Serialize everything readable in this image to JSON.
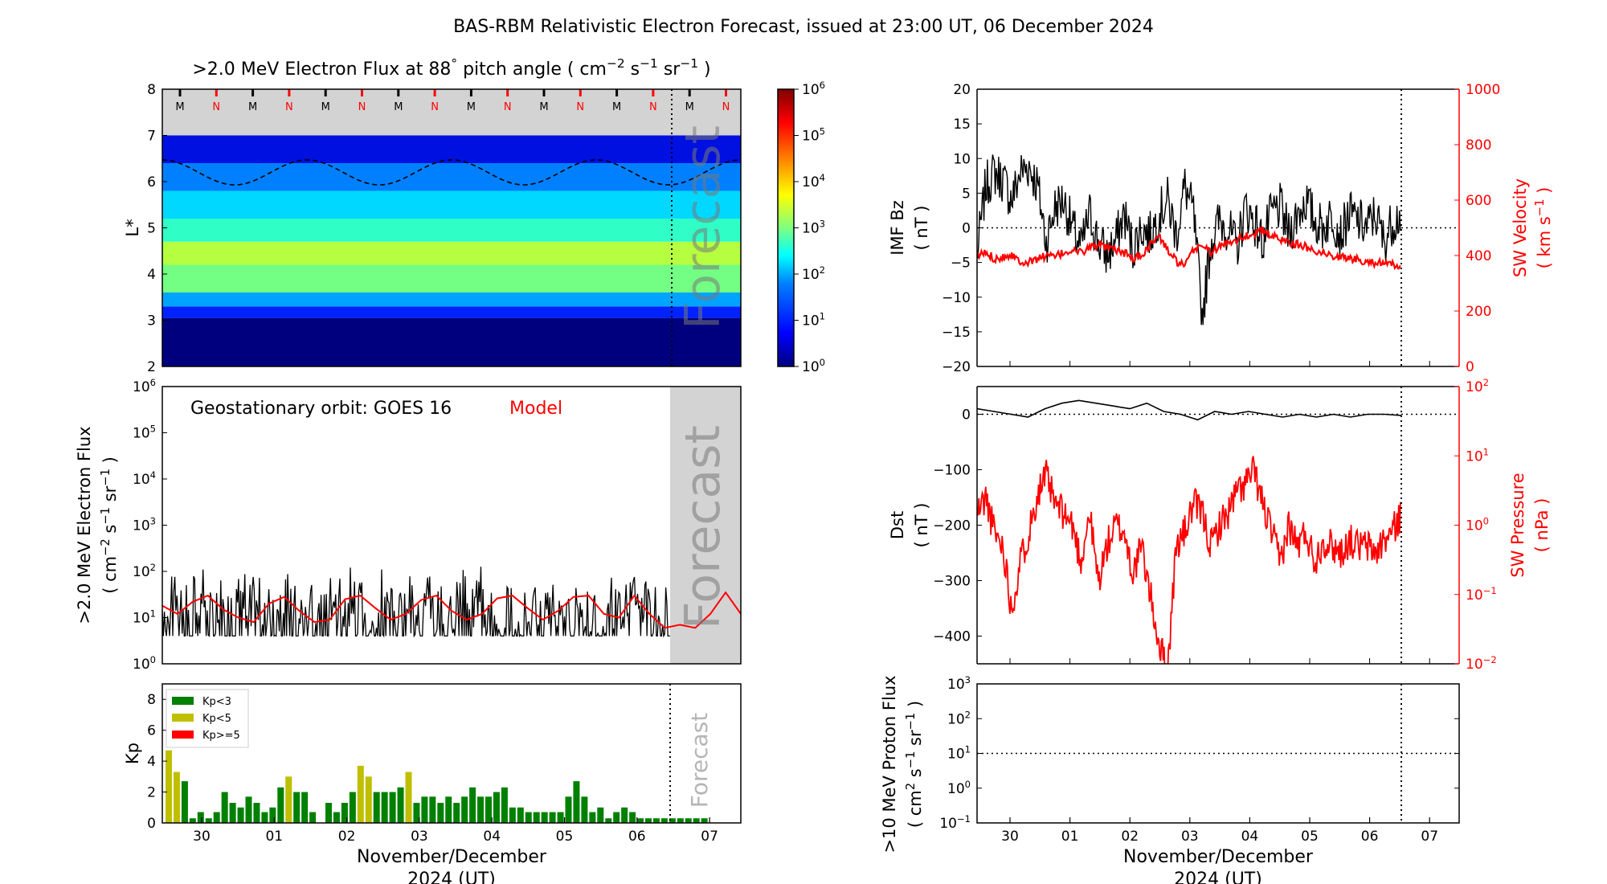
{
  "figure": {
    "title": "BAS-RBM Relativistic Electron Forecast, issued at 23:00 UT, 06 December 2024"
  },
  "colors": {
    "black": "#000000",
    "red": "#ff0000",
    "forecast_band": "#d3d3d3",
    "kp_low": "#008000",
    "kp_mid": "#bfbf00",
    "kp_high": "#ff0000"
  },
  "date_axis": {
    "ticks": [
      "30",
      "01",
      "02",
      "03",
      "04",
      "05",
      "06",
      "07"
    ],
    "label_line1": "November/December",
    "label_line2": "2024 (UT)"
  },
  "chart_data": [
    {
      "id": "lstar_flux",
      "type": "heatmap",
      "title_parts": [
        ">2.0 MeV Electron Flux at 88",
        "°",
        " pitch angle ( cm",
        "−2",
        " s",
        "−1",
        " sr",
        "−1",
        " )"
      ],
      "ylabel": "L*",
      "ylim": [
        2,
        8
      ],
      "yticks": [
        "2",
        "3",
        "4",
        "5",
        "6",
        "7",
        "8"
      ],
      "mn_marks": [
        "M",
        "N",
        "M",
        "N",
        "M",
        "N",
        "M",
        "N",
        "M",
        "N",
        "M",
        "N",
        "M",
        "N",
        "M",
        "N"
      ],
      "forecast_label": "Forecast",
      "colorbar": {
        "scale": "log",
        "range": [
          1,
          1000000
        ],
        "tick_bases": [
          "10",
          "10",
          "10",
          "10",
          "10",
          "10",
          "10"
        ],
        "tick_exps": [
          "0",
          "1",
          "2",
          "3",
          "4",
          "5",
          "6"
        ],
        "colormap": "jet"
      },
      "bands": [
        {
          "l_from": 2.0,
          "l_to": 3.05,
          "color": "#00007f"
        },
        {
          "l_from": 3.05,
          "l_to": 3.3,
          "color": "#0022ff"
        },
        {
          "l_from": 3.3,
          "l_to": 3.6,
          "color": "#00a4ff"
        },
        {
          "l_from": 3.6,
          "l_to": 4.2,
          "color": "#73ff83"
        },
        {
          "l_from": 4.2,
          "l_to": 4.7,
          "color": "#b6ff40"
        },
        {
          "l_from": 4.7,
          "l_to": 5.2,
          "color": "#2fffc7"
        },
        {
          "l_from": 5.2,
          "l_to": 5.8,
          "color": "#00d8ff"
        },
        {
          "l_from": 5.8,
          "l_to": 6.4,
          "color": "#0080ff"
        },
        {
          "l_from": 6.4,
          "l_to": 7.0,
          "color": "#0010e0"
        }
      ]
    },
    {
      "id": "geo_flux",
      "type": "line",
      "ylabel": ">2.0 MeV Electron Flux",
      "ylabel_unit_parts": [
        "( cm",
        "−2",
        " s",
        "−1",
        " sr",
        "−1",
        " )"
      ],
      "yscale": "log",
      "ylim": [
        1,
        1000000
      ],
      "tick_bases": [
        "10",
        "10",
        "10",
        "10",
        "10",
        "10",
        "10"
      ],
      "tick_exps": [
        "0",
        "1",
        "2",
        "3",
        "4",
        "5",
        "6"
      ],
      "annotation_prefix": "Geostationary orbit:   GOES 16",
      "annotation_model": "Model",
      "forecast_label": "Forecast",
      "series": [
        {
          "color": "#000000",
          "observed_range": [
            4,
            150
          ]
        },
        {
          "name": "Model",
          "color": "#ff0000",
          "x": [
            0,
            0.5,
            1,
            1.5,
            2,
            2.5,
            3,
            3.5,
            4,
            4.5,
            5,
            5.5,
            6,
            6.5,
            7,
            7.5,
            8,
            8.5,
            9,
            9.5,
            10,
            10.5,
            11,
            11.5,
            12,
            12.5,
            13,
            13.5,
            14,
            14.5,
            15,
            15.5,
            16,
            16.5,
            17,
            17.5,
            18,
            18.5,
            19
          ],
          "values": [
            18,
            12,
            22,
            30,
            15,
            10,
            8,
            20,
            28,
            14,
            8,
            9,
            25,
            30,
            16,
            9,
            12,
            24,
            30,
            14,
            9,
            12,
            26,
            30,
            16,
            9,
            14,
            28,
            30,
            12,
            10,
            30,
            12,
            6,
            7,
            6,
            12,
            35,
            12
          ]
        }
      ]
    },
    {
      "id": "kp",
      "type": "bar",
      "ylabel": "Kp",
      "ylim": [
        0,
        9
      ],
      "yticks": [
        "0",
        "2",
        "4",
        "6",
        "8"
      ],
      "forecast_label": "Forecast",
      "legend": [
        "Kp<3",
        "Kp<5",
        "Kp>=5"
      ],
      "values": [
        4.7,
        3.3,
        2.7,
        0.3,
        0.7,
        0.3,
        0.7,
        2.0,
        1.3,
        1.0,
        1.7,
        1.3,
        0.7,
        1.0,
        2.3,
        3.0,
        2.0,
        2.0,
        0.7,
        0.0,
        1.3,
        0.7,
        1.3,
        2.0,
        3.7,
        3.0,
        2.0,
        2.0,
        2.0,
        2.3,
        3.3,
        1.3,
        1.7,
        1.7,
        1.3,
        1.7,
        1.3,
        1.7,
        2.3,
        1.7,
        1.7,
        2.0,
        2.3,
        1.0,
        1.0,
        0.7,
        0.7,
        0.7,
        0.7,
        0.7,
        1.7,
        2.7,
        1.7,
        0.7,
        1.0,
        0.3,
        0.7,
        1.0,
        0.7,
        0.3,
        0.3,
        0.3,
        0.3,
        0.3,
        0.3,
        0.3,
        0.3,
        0.3
      ]
    },
    {
      "id": "imf_sw",
      "type": "line",
      "ylabel": "IMF Bz",
      "ylabel_unit": "( nT )",
      "ylim": [
        -20,
        20
      ],
      "yticks": [
        "−20",
        "−15",
        "−10",
        "−5",
        "0",
        "5",
        "10",
        "15",
        "20"
      ],
      "y2label": "SW Velocity",
      "y2label_unit_parts": [
        "( km s",
        "−1",
        " )"
      ],
      "y2lim": [
        0,
        1000
      ],
      "y2ticks": [
        "0",
        "200",
        "400",
        "600",
        "800",
        "1000"
      ],
      "series": [
        {
          "color": "#000000",
          "x": [
            0,
            0.5,
            1,
            1.5,
            2,
            2.5,
            3,
            3.5,
            4,
            4.5,
            5,
            5.5,
            6,
            6.5,
            7,
            7.5,
            8,
            8.5,
            9,
            9.5,
            10,
            10.5,
            11,
            11.5,
            12,
            12.5,
            13,
            13.5,
            14,
            14.5,
            15,
            15.5,
            16,
            16.5,
            17,
            17.5,
            18,
            18.5,
            19,
            19.5,
            20,
            20.5,
            21,
            21.5,
            22,
            22.5,
            23,
            23.5,
            24,
            24.5
          ],
          "values": [
            -4,
            6,
            8,
            7,
            4,
            8,
            9,
            6,
            -2,
            3,
            4,
            0,
            -3,
            2,
            -2,
            -4,
            -2,
            2,
            -3,
            0,
            -1,
            2,
            4,
            -1,
            6,
            2,
            -13,
            -2,
            1,
            0,
            -3,
            3,
            1,
            -2,
            2,
            3,
            -1,
            2,
            4,
            1,
            0,
            2,
            -1,
            2,
            1,
            0,
            2,
            -2,
            1,
            2
          ]
        },
        {
          "color": "#ff0000",
          "axis": "y2",
          "x": [
            0,
            0.5,
            1,
            1.5,
            2,
            2.5,
            3,
            3.5,
            4,
            4.5,
            5,
            5.5,
            6,
            6.5,
            7,
            7.5,
            8,
            8.5,
            9,
            9.5,
            10,
            10.5,
            11,
            11.5,
            12,
            12.5,
            13,
            13.5,
            14,
            14.5,
            15,
            15.5,
            16,
            16.5,
            17,
            17.5,
            18,
            18.5,
            19,
            19.5,
            20,
            20.5,
            21,
            21.5,
            22,
            22.5,
            23,
            23.5,
            24,
            24.5
          ],
          "values": [
            400,
            410,
            390,
            395,
            405,
            380,
            375,
            390,
            400,
            395,
            410,
            420,
            410,
            430,
            440,
            425,
            420,
            410,
            390,
            400,
            440,
            470,
            420,
            380,
            360,
            420,
            440,
            410,
            430,
            450,
            460,
            470,
            480,
            490,
            470,
            460,
            450,
            440,
            430,
            420,
            410,
            400,
            395,
            390,
            385,
            380,
            375,
            370,
            365,
            360
          ]
        }
      ]
    },
    {
      "id": "dst_pressure",
      "type": "line",
      "ylabel": "Dst",
      "ylabel_unit": "( nT )",
      "ylim": [
        -450,
        50
      ],
      "yticks": [
        "−400",
        "−300",
        "−200",
        "−100",
        "0"
      ],
      "y2label": "SW Pressure",
      "y2label_unit": "( nPa )",
      "y2scale": "log",
      "y2lim": [
        0.01,
        100
      ],
      "y2_tick_bases": [
        "10",
        "10",
        "10",
        "10",
        "10"
      ],
      "y2_tick_exps": [
        "−2",
        "−1",
        "0",
        "1",
        "2"
      ],
      "series": [
        {
          "color": "#000000",
          "x": [
            0,
            1,
            2,
            3,
            4,
            5,
            6,
            7,
            8,
            9,
            10,
            11,
            12,
            13,
            14,
            15,
            16,
            17,
            18,
            19,
            20,
            21,
            22,
            23,
            24,
            25
          ],
          "values": [
            10,
            5,
            0,
            -5,
            10,
            20,
            25,
            20,
            15,
            10,
            20,
            5,
            0,
            -10,
            5,
            0,
            5,
            0,
            -5,
            0,
            -5,
            0,
            -5,
            0,
            0,
            -2
          ]
        },
        {
          "color": "#ff0000",
          "axis": "y2",
          "x": [
            0,
            0.5,
            1,
            1.5,
            2,
            2.5,
            3,
            3.5,
            4,
            4.5,
            5,
            5.5,
            6,
            6.5,
            7,
            7.5,
            8,
            8.5,
            9,
            9.5,
            10,
            10.5,
            11,
            11.5,
            12,
            12.5,
            13,
            13.5,
            14,
            14.5,
            15,
            15.5,
            16,
            16.5,
            17,
            17.5,
            18,
            18.5,
            19,
            19.5,
            20,
            20.5,
            21,
            21.5,
            22,
            22.5,
            23,
            23.5,
            24,
            24.5
          ],
          "values": [
            1.5,
            2.5,
            0.8,
            0.5,
            0.06,
            0.3,
            0.8,
            3.0,
            5.0,
            2.0,
            1.5,
            1.0,
            0.3,
            1.5,
            0.15,
            0.5,
            1.0,
            0.8,
            0.2,
            0.5,
            0.1,
            0.02,
            0.008,
            0.5,
            0.8,
            2.0,
            1.5,
            0.5,
            1.0,
            1.5,
            3.0,
            4.0,
            6.0,
            2.0,
            0.8,
            0.3,
            1.0,
            0.5,
            0.8,
            0.3,
            0.6,
            0.5,
            0.4,
            0.6,
            0.5,
            0.5,
            0.4,
            0.6,
            0.8,
            1.5
          ]
        }
      ]
    },
    {
      "id": "proton_flux",
      "type": "line",
      "ylabel": ">10 MeV Proton Flux",
      "ylabel_unit_parts": [
        "( cm",
        "2",
        " s",
        "−1",
        " sr",
        "−1",
        " )"
      ],
      "yscale": "log",
      "ylim": [
        0.1,
        1000
      ],
      "tick_bases": [
        "10",
        "10",
        "10",
        "10",
        "10"
      ],
      "tick_exps": [
        "−1",
        "0",
        "1",
        "2",
        "3"
      ],
      "threshold": 10
    }
  ]
}
